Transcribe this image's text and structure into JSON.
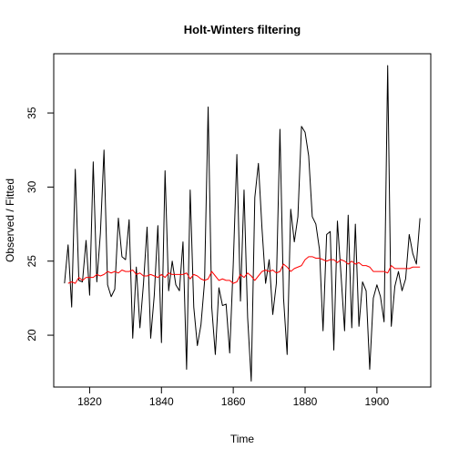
{
  "chart_data": {
    "type": "line",
    "title": "Holt-Winters filtering",
    "xlabel": "Time",
    "ylabel": "Observed / Fitted",
    "xlim": [
      1810,
      1915
    ],
    "ylim": [
      16.5,
      39.0
    ],
    "x_ticks": [
      "1820",
      "1840",
      "1860",
      "1880",
      "1900"
    ],
    "y_ticks": [
      "20",
      "25",
      "30",
      "35"
    ],
    "grid": false,
    "series": [
      {
        "color": "#000000",
        "x_start": 1813,
        "values": [
          23.5,
          26.1,
          21.9,
          31.2,
          23.7,
          23.6,
          26.4,
          22.7,
          31.7,
          23.6,
          26.9,
          32.5,
          23.4,
          22.6,
          23.1,
          27.9,
          25.3,
          25.1,
          27.8,
          19.8,
          24.6,
          20.5,
          23.5,
          27.3,
          19.8,
          22.7,
          27.4,
          19.5,
          31.1,
          23.0,
          25.0,
          23.4,
          23.0,
          26.3,
          17.7,
          29.8,
          21.9,
          19.3,
          20.7,
          23.6,
          35.4,
          21.9,
          18.7,
          23.2,
          22.0,
          22.1,
          18.8,
          24.8,
          32.2,
          22.3,
          29.8,
          21.2,
          16.9,
          29.3,
          31.6,
          27.2,
          23.5,
          25.1,
          21.4,
          23.5,
          33.9,
          22.5,
          18.7,
          28.5,
          26.3,
          28.0,
          34.1,
          33.7,
          32.1,
          28.0,
          27.5,
          25.8,
          20.3,
          26.8,
          27.0,
          19.0,
          27.7,
          24.1,
          20.3,
          28.1,
          20.5,
          27.5,
          20.6,
          23.6,
          23.0,
          17.7,
          22.5,
          23.4,
          22.6,
          20.9,
          38.2,
          20.6,
          23.3,
          24.3,
          23.0,
          23.8,
          26.8,
          25.5,
          24.8,
          27.9
        ]
      },
      {
        "color": "#ff0000",
        "x_start": 1814,
        "values": [
          23.5,
          23.6,
          23.5,
          23.9,
          23.7,
          23.9,
          23.9,
          23.9,
          24.1,
          24.0,
          24.1,
          24.3,
          24.2,
          24.3,
          24.2,
          24.4,
          24.3,
          24.3,
          24.4,
          24.1,
          24.2,
          24.0,
          24.0,
          24.1,
          24.0,
          23.9,
          24.1,
          23.9,
          24.2,
          24.1,
          24.1,
          24.1,
          24.1,
          24.2,
          23.8,
          24.1,
          24.0,
          23.8,
          23.7,
          23.8,
          24.3,
          24.0,
          23.7,
          23.8,
          23.7,
          23.7,
          23.5,
          23.6,
          24.1,
          23.9,
          24.2,
          24.0,
          23.7,
          24.0,
          24.3,
          24.4,
          24.3,
          24.4,
          24.2,
          24.3,
          24.8,
          24.6,
          24.3,
          24.5,
          24.6,
          24.7,
          25.1,
          25.3,
          25.3,
          25.2,
          25.2,
          25.1,
          25.0,
          25.1,
          25.1,
          24.9,
          25.1,
          25.0,
          24.8,
          25.0,
          24.8,
          24.9,
          24.7,
          24.7,
          24.6,
          24.3,
          24.3,
          24.3,
          24.3,
          24.2,
          24.7,
          24.5,
          24.5,
          24.5,
          24.5,
          24.5,
          24.6,
          24.6,
          24.6
        ]
      }
    ]
  }
}
